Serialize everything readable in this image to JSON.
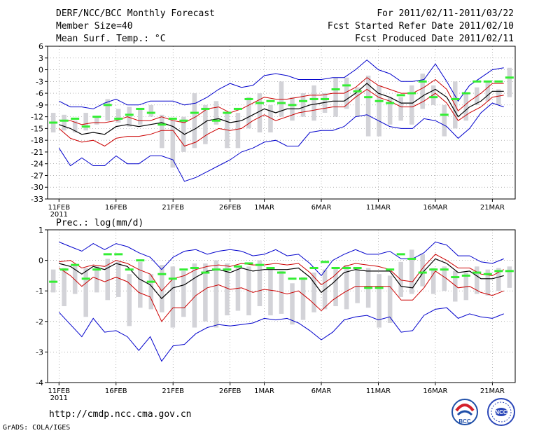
{
  "header": {
    "title": "DERF/NCC/BCC Monthly Forecast",
    "member_size": "Member Size=40",
    "variable": "Mean Surf. Temp.: °C",
    "forecast_period": "For 2011/02/11-2011/03/22",
    "started_refer": "Fcst Started Refer Date 2011/02/10",
    "produced": "Fcst Produced Date 2011/02/11"
  },
  "footer": {
    "url": "http://cmdp.ncc.cma.gov.cn",
    "credit": "GrADS: COLA/IGES",
    "logo_bcc": "BCC",
    "logo_ncc": "NCC"
  },
  "colors": {
    "outer": "#0000cc",
    "inner": "#cc0000",
    "mean": "#000000",
    "bar": "#d3d3d8",
    "obs": "#33ee33"
  },
  "chart_data": [
    {
      "type": "line",
      "title": "Mean Surf. Temp.: °C",
      "ylim": [
        -33,
        6
      ],
      "yticks": [
        6,
        3,
        0,
        -3,
        -6,
        -9,
        -12,
        -15,
        -18,
        -21,
        -24,
        -27,
        -30,
        -33
      ],
      "x": [
        0,
        1,
        2,
        3,
        4,
        5,
        6,
        7,
        8,
        9,
        10,
        11,
        12,
        13,
        14,
        15,
        16,
        17,
        18,
        19,
        20,
        21,
        22,
        23,
        24,
        25,
        26,
        27,
        28,
        29,
        30,
        31,
        32,
        33,
        34,
        35,
        36,
        37,
        38,
        39
      ],
      "xlim": [
        -1,
        40
      ],
      "xticks": [
        {
          "day": 0,
          "label": "11FEB",
          "sub": "2011"
        },
        {
          "day": 5,
          "label": "16FEB"
        },
        {
          "day": 10,
          "label": "21FEB"
        },
        {
          "day": 15,
          "label": "26FEB"
        },
        {
          "day": 18,
          "label": "1MAR"
        },
        {
          "day": 23,
          "label": "6MAR"
        },
        {
          "day": 28,
          "label": "11MAR"
        },
        {
          "day": 33,
          "label": "16MAR"
        },
        {
          "day": 38,
          "label": "21MAR"
        }
      ],
      "series": [
        {
          "name": "max",
          "color": "#0000cc",
          "values": [
            -8,
            -9.5,
            -9.5,
            -10,
            -8.5,
            -7.5,
            -9,
            -9,
            -8,
            -8,
            -8,
            -9,
            -8.5,
            -7,
            -5,
            -3.5,
            -4.5,
            -4,
            -1.5,
            -1,
            -1.5,
            -2.5,
            -2.5,
            -2.5,
            -2,
            -2,
            0,
            2.5,
            0,
            -1,
            -3,
            -3,
            -2.5,
            1.5,
            -3,
            -8,
            -4,
            -2,
            0,
            0.5
          ]
        },
        {
          "name": "upper",
          "color": "#cc0000",
          "values": [
            -13,
            -13,
            -14,
            -13.5,
            -13.5,
            -13,
            -12,
            -13,
            -13,
            -12,
            -13,
            -13.5,
            -12,
            -10,
            -9.5,
            -11,
            -10,
            -8.5,
            -7,
            -7.5,
            -7.5,
            -7,
            -6.5,
            -6.5,
            -6,
            -6,
            -4.5,
            -2,
            -4,
            -5,
            -6,
            -6,
            -4.5,
            -2.5,
            -5,
            -10.5,
            -8,
            -6,
            -3.5,
            -3.5
          ]
        },
        {
          "name": "mean",
          "color": "#000000",
          "values": [
            -14,
            -15,
            -16.5,
            -16,
            -16.5,
            -14.5,
            -14,
            -14.5,
            -14,
            -13.5,
            -14.5,
            -16.5,
            -15,
            -13,
            -12.5,
            -13.5,
            -13,
            -11.5,
            -10,
            -11,
            -10,
            -10,
            -9,
            -8.5,
            -8,
            -8,
            -6,
            -3.5,
            -6,
            -7,
            -8.5,
            -8.5,
            -6.5,
            -5,
            -7,
            -12,
            -9.5,
            -8,
            -5.5,
            -5.5
          ]
        },
        {
          "name": "lower",
          "color": "#cc0000",
          "values": [
            -15,
            -17.5,
            -18.5,
            -18,
            -19.5,
            -17.5,
            -17,
            -17,
            -16.5,
            -15.5,
            -15.5,
            -19.5,
            -18.5,
            -16.5,
            -15,
            -15.5,
            -15,
            -13,
            -11.5,
            -13,
            -12,
            -11,
            -10.5,
            -10,
            -9.5,
            -9.5,
            -7,
            -5,
            -7,
            -8,
            -9.5,
            -9.5,
            -8,
            -6,
            -8.5,
            -13,
            -11,
            -9.5,
            -7,
            -6.5
          ]
        },
        {
          "name": "min",
          "color": "#0000cc",
          "values": [
            -20,
            -24.5,
            -22.5,
            -24.5,
            -24.5,
            -22,
            -24,
            -24,
            -22,
            -22,
            -23,
            -28.5,
            -27.5,
            -26,
            -24.5,
            -23,
            -21,
            -20,
            -18.5,
            -18,
            -19.5,
            -19.5,
            -16,
            -15.5,
            -15.5,
            -14.5,
            -12,
            -11.5,
            -13,
            -14.5,
            -15,
            -15,
            -12.5,
            -13,
            -14.5,
            -17.5,
            -15,
            -11,
            -8.5,
            -9.5
          ]
        }
      ],
      "bars": [
        [
          -16,
          -11
        ],
        [
          -15.5,
          -11.5
        ],
        [
          -16,
          -13
        ],
        [
          -15.5,
          -11
        ],
        [
          -14,
          -12
        ],
        [
          -13,
          -7.5
        ],
        [
          -13.5,
          -10
        ],
        [
          -14.5,
          -9.5
        ],
        [
          -14,
          -10
        ],
        [
          -12,
          -9
        ],
        [
          -20,
          -11.5
        ],
        [
          -25,
          -13
        ],
        [
          -21,
          -12
        ],
        [
          -20,
          -6
        ],
        [
          -19,
          -9
        ],
        [
          -14,
          -8
        ],
        [
          -20,
          -11
        ],
        [
          -20,
          -11
        ],
        [
          -15,
          -7
        ],
        [
          -16,
          -6
        ],
        [
          -16,
          -9
        ],
        [
          -12,
          -3
        ],
        [
          -13,
          -7
        ],
        [
          -12,
          -6
        ],
        [
          -13,
          -4
        ],
        [
          -11,
          -6
        ],
        [
          -12,
          -2
        ],
        [
          -10,
          -2
        ],
        [
          -12,
          -4.5
        ],
        [
          -17,
          -1.5
        ],
        [
          -17,
          -4
        ],
        [
          -14,
          -7
        ],
        [
          -13,
          -7
        ],
        [
          -14,
          -4
        ],
        [
          -10,
          -1
        ],
        [
          -9,
          -4
        ],
        [
          -17,
          -9
        ],
        [
          -15,
          -3
        ],
        [
          -13,
          -6
        ],
        [
          -9,
          -4.5
        ],
        [
          -8,
          -3
        ],
        [
          -9,
          -5
        ],
        [
          -7,
          0.5
        ]
      ],
      "obs": [
        -13.5,
        -13,
        -12.5,
        -14.5,
        -12,
        -9,
        -12.5,
        -11.5,
        -10,
        -11,
        -14,
        -12.5,
        -13,
        -11,
        -10,
        -13,
        -11,
        -10,
        -7.5,
        -8.5,
        -8,
        -8.5,
        -9,
        -8,
        -7.5,
        -7.5,
        -5,
        -4,
        -5.5,
        -7,
        -8,
        -8.5,
        -6.5,
        -6,
        -3,
        -7,
        -11.5,
        -7.5,
        -6,
        -3,
        -3,
        -3,
        -2
      ]
    },
    {
      "type": "line",
      "title": "Prec.: log(mm/d)",
      "ylim": [
        -4,
        1
      ],
      "yticks": [
        1,
        0,
        -1,
        -2,
        -3,
        -4
      ],
      "x": [
        0,
        1,
        2,
        3,
        4,
        5,
        6,
        7,
        8,
        9,
        10,
        11,
        12,
        13,
        14,
        15,
        16,
        17,
        18,
        19,
        20,
        21,
        22,
        23,
        24,
        25,
        26,
        27,
        28,
        29,
        30,
        31,
        32,
        33,
        34,
        35,
        36,
        37,
        38,
        39
      ],
      "xlim": [
        -1,
        40
      ],
      "xticks": [
        {
          "day": 0,
          "label": "11FEB",
          "sub": "2011"
        },
        {
          "day": 5,
          "label": "16FEB"
        },
        {
          "day": 10,
          "label": "21FEB"
        },
        {
          "day": 15,
          "label": "26FEB"
        },
        {
          "day": 18,
          "label": "1MAR"
        },
        {
          "day": 23,
          "label": "6MAR"
        },
        {
          "day": 28,
          "label": "11MAR"
        },
        {
          "day": 33,
          "label": "16MAR"
        },
        {
          "day": 38,
          "label": "21MAR"
        }
      ],
      "series": [
        {
          "name": "max",
          "color": "#0000cc",
          "values": [
            0.6,
            0.45,
            0.3,
            0.55,
            0.35,
            0.55,
            0.45,
            0.25,
            0.1,
            -0.3,
            0.1,
            0.3,
            0.35,
            0.2,
            0.3,
            0.35,
            0.3,
            0.15,
            0.2,
            0.35,
            0.15,
            0.2,
            -0.1,
            -0.5,
            0,
            0.2,
            0.35,
            0.2,
            0.2,
            0.3,
            0.05,
            0.05,
            0.25,
            0.6,
            0.5,
            0.15,
            0.15,
            -0.05,
            -0.1,
            0.05
          ]
        },
        {
          "name": "upper",
          "color": "#cc0000",
          "values": [
            -0.05,
            0,
            -0.25,
            -0.15,
            -0.2,
            0,
            -0.1,
            -0.3,
            -0.45,
            -1,
            -0.6,
            -0.5,
            -0.3,
            -0.2,
            -0.15,
            -0.2,
            -0.1,
            -0.15,
            -0.15,
            -0.1,
            -0.15,
            -0.1,
            -0.4,
            -0.8,
            -0.55,
            -0.2,
            -0.1,
            -0.15,
            -0.2,
            -0.3,
            -0.65,
            -0.7,
            -0.2,
            0.2,
            0,
            -0.25,
            -0.25,
            -0.45,
            -0.5,
            -0.3
          ]
        },
        {
          "name": "mean",
          "color": "#000000",
          "values": [
            -0.1,
            -0.2,
            -0.45,
            -0.2,
            -0.3,
            -0.1,
            -0.2,
            -0.6,
            -0.8,
            -1.25,
            -0.9,
            -0.8,
            -0.55,
            -0.35,
            -0.3,
            -0.4,
            -0.25,
            -0.35,
            -0.3,
            -0.3,
            -0.3,
            -0.25,
            -0.55,
            -1.05,
            -0.75,
            -0.4,
            -0.3,
            -0.35,
            -0.35,
            -0.35,
            -0.85,
            -0.9,
            -0.35,
            0.05,
            -0.1,
            -0.4,
            -0.35,
            -0.6,
            -0.6,
            -0.5
          ]
        },
        {
          "name": "lower",
          "color": "#cc0000",
          "values": [
            -0.25,
            -0.5,
            -0.85,
            -0.55,
            -0.7,
            -0.55,
            -0.7,
            -1.05,
            -1.2,
            -2,
            -1.55,
            -1.55,
            -1.15,
            -0.9,
            -0.8,
            -0.95,
            -0.9,
            -1.05,
            -0.95,
            -1,
            -1.1,
            -1,
            -1.3,
            -1.65,
            -1.3,
            -1.05,
            -0.85,
            -0.85,
            -0.85,
            -0.85,
            -1.3,
            -1.3,
            -0.9,
            -0.35,
            -0.6,
            -0.9,
            -0.85,
            -1.05,
            -1.15,
            -1
          ]
        },
        {
          "name": "min",
          "color": "#0000cc",
          "values": [
            -1.7,
            -2.1,
            -2.5,
            -1.9,
            -2.35,
            -2.3,
            -2.5,
            -2.95,
            -2.5,
            -3.3,
            -2.8,
            -2.75,
            -2.4,
            -2.2,
            -2.1,
            -2.15,
            -2.1,
            -2.05,
            -1.9,
            -1.95,
            -1.9,
            -2.05,
            -2.3,
            -2.6,
            -2.35,
            -1.95,
            -1.85,
            -1.8,
            -1.95,
            -1.85,
            -2.35,
            -2.3,
            -1.8,
            -1.6,
            -1.55,
            -1.9,
            -1.75,
            -1.85,
            -1.9,
            -1.75
          ]
        }
      ],
      "bars": [
        [
          -1.05,
          -0.3
        ],
        [
          -1.5,
          -0.25
        ],
        [
          -1.1,
          -0.15
        ],
        [
          -1.85,
          -0.25
        ],
        [
          -1.05,
          -0.2
        ],
        [
          -1.3,
          0.05
        ],
        [
          -1.2,
          -0.05
        ],
        [
          -2.15,
          -0.45
        ],
        [
          -1.55,
          -0.05
        ],
        [
          -1.6,
          -0.45
        ],
        [
          -1.7,
          -0.15
        ],
        [
          -2.2,
          -0.2
        ],
        [
          -1.85,
          -0.35
        ],
        [
          -2.2,
          -0.1
        ],
        [
          -2.0,
          -0.1
        ],
        [
          -2.2,
          0.0
        ],
        [
          -1.8,
          -0.1
        ],
        [
          -1.65,
          -0.2
        ],
        [
          -1.8,
          -0.2
        ],
        [
          -1.5,
          0.0
        ],
        [
          -1.8,
          -0.3
        ],
        [
          -1.75,
          -0.35
        ],
        [
          -2.1,
          -0.75
        ],
        [
          -1.95,
          -0.55
        ],
        [
          -1.7,
          -0.4
        ],
        [
          -1.6,
          -0.3
        ],
        [
          -1.5,
          -0.25
        ],
        [
          -1.6,
          -0.15
        ],
        [
          -1.4,
          -0.3
        ],
        [
          -1.55,
          -0.25
        ],
        [
          -2.2,
          -0.45
        ],
        [
          -2.05,
          -0.5
        ],
        [
          -1.2,
          -0.05
        ],
        [
          -1.1,
          0.35
        ],
        [
          -0.85,
          0.2
        ],
        [
          -1.1,
          -0.25
        ],
        [
          -1.0,
          -0.2
        ],
        [
          -1.35,
          -0.35
        ],
        [
          -1.3,
          -0.4
        ],
        [
          -1.1,
          -0.2
        ],
        [
          -1.15,
          -0.3
        ],
        [
          -1.0,
          -0.25
        ],
        [
          -0.9,
          -0.2
        ]
      ],
      "obs": [
        -0.7,
        -0.3,
        -0.15,
        -0.6,
        -0.3,
        0.2,
        0.2,
        -0.3,
        0,
        -0.7,
        -0.45,
        -0.6,
        -0.3,
        -0.25,
        -0.4,
        -0.3,
        -0.3,
        -0.2,
        -0.1,
        -0.15,
        -0.25,
        -0.4,
        -0.6,
        -0.6,
        -0.25,
        -0.05,
        -0.25,
        -0.25,
        -0.25,
        -0.9,
        -0.9,
        -0.3,
        0.2,
        0.05,
        -0.4,
        -0.3,
        -0.3,
        -0.55,
        -0.5,
        -0.4,
        -0.45,
        -0.35,
        -0.35
      ]
    }
  ]
}
